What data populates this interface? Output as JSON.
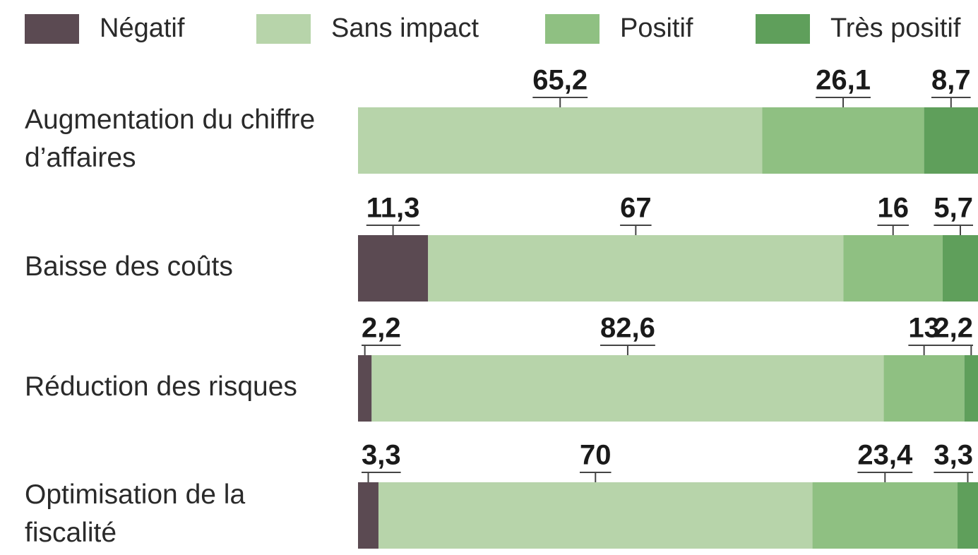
{
  "chart_data": {
    "type": "stacked-bar-horizontal",
    "categories": [
      "Augmentation du chiffre d’affaires",
      "Baisse des coûts",
      "Réduction des risques",
      "Optimisation de la fiscalité"
    ],
    "xlim": [
      0,
      100
    ],
    "series": [
      {
        "name": "Négatif",
        "color": "#5b4a52",
        "values": [
          null,
          11.3,
          2.2,
          3.3
        ],
        "value_labels": [
          null,
          "11,3",
          "2,2",
          "3,3"
        ]
      },
      {
        "name": "Sans impact",
        "color": "#b7d4aa",
        "values": [
          65.2,
          67,
          82.6,
          70
        ],
        "value_labels": [
          "65,2",
          "67",
          "82,6",
          "70"
        ]
      },
      {
        "name": "Positif",
        "color": "#8fc082",
        "values": [
          26.1,
          16,
          13,
          23.4
        ],
        "value_labels": [
          "26,1",
          "16",
          "13",
          "23,4"
        ]
      },
      {
        "name": "Très positif",
        "color": "#5f9f5b",
        "values": [
          8.7,
          5.7,
          2.2,
          3.3
        ],
        "value_labels": [
          "8,7",
          "5,7",
          "2,2",
          "3,3"
        ]
      }
    ],
    "legend": "top"
  }
}
